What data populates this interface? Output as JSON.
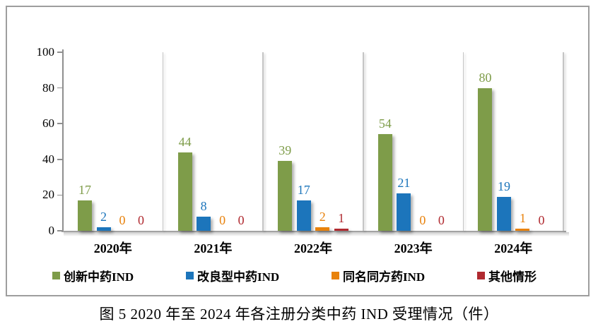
{
  "figure": {
    "caption": "图 5  2020 年至 2024 年各注册分类中药 IND 受理情况（件）"
  },
  "chart_data": {
    "type": "bar",
    "title": "",
    "xlabel": "",
    "ylabel": "",
    "categories": [
      "2020年",
      "2021年",
      "2022年",
      "2023年",
      "2024年"
    ],
    "series": [
      {
        "name": "创新中药IND",
        "color": "#7E9C49",
        "values": [
          17,
          44,
          39,
          54,
          80
        ]
      },
      {
        "name": "改良型中药IND",
        "color": "#1C75BB",
        "values": [
          2,
          8,
          17,
          21,
          19
        ]
      },
      {
        "name": "同名同方药IND",
        "color": "#E8820C",
        "values": [
          0,
          0,
          2,
          0,
          1
        ]
      },
      {
        "name": "其他情形",
        "color": "#B02A30",
        "values": [
          0,
          0,
          1,
          0,
          0
        ]
      }
    ],
    "ylim": [
      0,
      100
    ],
    "yticks": [
      0,
      20,
      40,
      60,
      80,
      100
    ],
    "grid": "vertical category separators only",
    "legend_position": "bottom",
    "data_labels": true
  }
}
